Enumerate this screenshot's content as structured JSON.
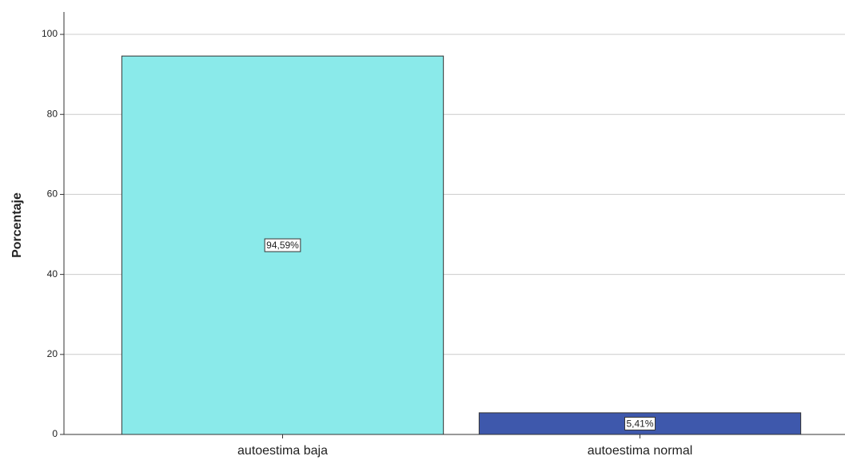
{
  "chart_data": {
    "type": "bar",
    "y_label": "Porcentaje",
    "categories": [
      "autoestima baja",
      "autoestima normal"
    ],
    "values": [
      94.59,
      5.41
    ],
    "value_labels": [
      "94,59%",
      "5,41%"
    ],
    "colors": [
      "#8aeaea",
      "#3e58ac"
    ],
    "ylim": [
      0,
      105.6
    ],
    "yticks": [
      0,
      20,
      40,
      60,
      80,
      100
    ],
    "grid": true
  }
}
